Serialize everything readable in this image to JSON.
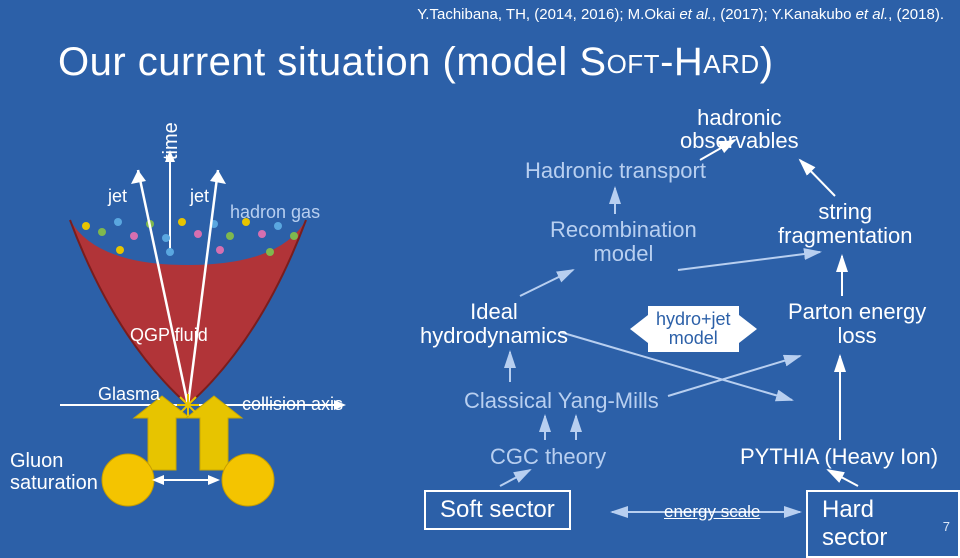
{
  "citation": {
    "prefix": "Y.Tachibana, TH, (2014, 2016); M.Okai ",
    "etal1": "et al.",
    "mid1": ", (2017); Y.Kanakubo ",
    "etal2": "et al.",
    "mid2": ", (2018)."
  },
  "title": {
    "main": "Our current situation (model S",
    "sc1": "OFT",
    "dash": "-H",
    "sc2": "ARD",
    "tail": ")"
  },
  "left": {
    "time": "time",
    "jet": "jet",
    "hadron_gas": "hadron gas",
    "qgp_fluid": "QGP fluid",
    "glasma": "Glasma",
    "collision_axis": "collision axis",
    "gluon_saturation": "Gluon\nsaturation"
  },
  "flow": {
    "hadronic_obs": "hadronic\nobservables",
    "hadronic_transport": "Hadronic transport",
    "recombination": "Recombination\nmodel",
    "string_frag": "string\nfragmentation",
    "ideal_hydro": "Ideal\nhydrodynamics",
    "hydro_jet": "hydro+jet\nmodel",
    "parton_loss": "Parton energy\nloss",
    "cym": "Classical Yang-Mills",
    "cgc": "CGC theory",
    "pythia": "PYTHIA (Heavy Ion)",
    "soft_sector": "Soft sector",
    "hard_sector": "Hard sector",
    "energy_scale": "energy scale"
  },
  "style": {
    "bg": "#2c60a8",
    "accent": "#b8cff0",
    "white": "#ffffff",
    "qgp_fill": "#b83232",
    "glasma_arrow": "#e7c400",
    "nucleus": "#f4c400",
    "jet_line": "#ffffff",
    "time_axis": "#ffffff"
  },
  "dots": {
    "colors": [
      "#e7c400",
      "#7fb84e",
      "#5aa7e0",
      "#d66fb0",
      "#7fb84e",
      "#5aa7e0",
      "#e7c400",
      "#d66fb0",
      "#5aa7e0",
      "#7fb84e",
      "#e7c400",
      "#d66fb0",
      "#5aa7e0",
      "#7fb84e",
      "#e7c400",
      "#5aa7e0",
      "#d66fb0",
      "#7fb84e"
    ]
  },
  "pagenum": "7"
}
